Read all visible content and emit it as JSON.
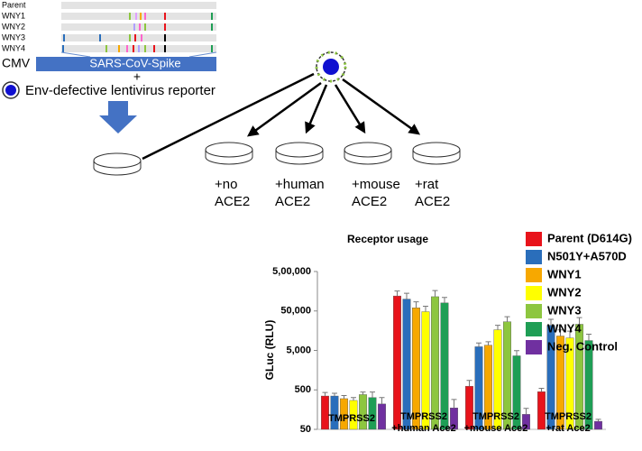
{
  "diagram": {
    "alignment_rows": [
      "Parent",
      "WNY1",
      "WNY2",
      "WNY3",
      "WNY4"
    ],
    "promoter": "CMV",
    "gene": "SARS-CoV-Spike",
    "plus": "+",
    "reporter": "Env-defective lentivirus reporter",
    "dish_labels": [
      [
        "+no",
        "ACE2"
      ],
      [
        "+human",
        "ACE2"
      ],
      [
        "+mouse",
        "ACE2"
      ],
      [
        "+rat",
        "ACE2"
      ]
    ]
  },
  "chart_data": {
    "type": "bar",
    "title": "Receptor usage",
    "y_label": "GLuc (RLU)",
    "categories": [
      "TMPRSS2",
      "TMPRSS2\n+human Ace2",
      "TMPRSS2\n+mouse Ace2",
      "TMPRSS2\n+rat Ace2"
    ],
    "log_scale": true,
    "ylim": [
      50,
      500000
    ],
    "yticks": [
      50,
      500,
      {
        "value": 5000,
        "label": "5,000"
      },
      {
        "value": 50000,
        "label": "50,000"
      },
      {
        "value": 500000,
        "label": "5,00,000"
      }
    ],
    "legend": "right",
    "series": [
      {
        "name": "Parent (D614G)",
        "color": "#e8131b",
        "values": [
          350,
          120000,
          620,
          450
        ],
        "errors": [
          80,
          40000,
          250,
          100
        ]
      },
      {
        "name": "N501Y+A570D",
        "color": "#2a6ebb",
        "values": [
          350,
          100000,
          6200,
          21700
        ],
        "errors": [
          60,
          40000,
          1500,
          9000
        ]
      },
      {
        "name": "WNY1",
        "color": "#f7a800",
        "values": [
          300,
          60000,
          6800,
          11600
        ],
        "errors": [
          60,
          25000,
          1500,
          5000
        ]
      },
      {
        "name": "WNY2",
        "color": "#ffff00",
        "values": [
          270,
          48000,
          16700,
          10400
        ],
        "errors": [
          50,
          18000,
          5000,
          5000
        ]
      },
      {
        "name": "WNY3",
        "color": "#8dc63f",
        "values": [
          380,
          115000,
          26700,
          23000
        ],
        "errors": [
          60,
          50000,
          9000,
          11000
        ]
      },
      {
        "name": "WNY4",
        "color": "#1f9e55",
        "values": [
          320,
          80000,
          3650,
          8900
        ],
        "errors": [
          120,
          30000,
          1300,
          4000
        ]
      },
      {
        "name": "Neg. Control",
        "color": "#7030a0",
        "values": [
          220,
          175,
          120,
          80
        ],
        "errors": [
          100,
          110,
          50,
          10
        ]
      }
    ]
  }
}
